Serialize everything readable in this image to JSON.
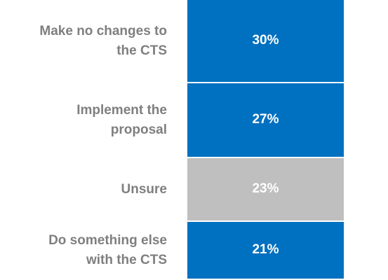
{
  "chart_data": {
    "type": "stacked-bar",
    "categories": [
      "Make no changes to\nthe CTS",
      "Implement the\nproposal",
      "Unsure",
      "Do something else\nwith the CTS"
    ],
    "values": [
      30,
      27,
      23,
      21
    ],
    "value_labels": [
      "30%",
      "27%",
      "23%",
      "21%"
    ],
    "colors": [
      "#0070c0",
      "#0070c0",
      "#bfbfbf",
      "#0070c0"
    ]
  }
}
